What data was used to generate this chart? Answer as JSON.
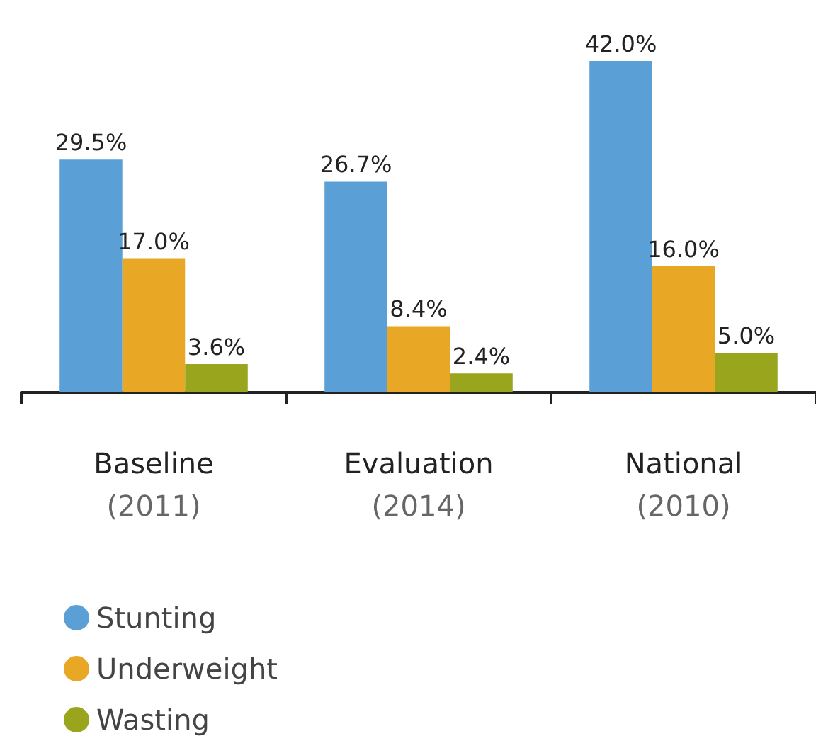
{
  "chart_data": {
    "type": "bar",
    "categories": [
      "Baseline\n(2011)",
      "Evaluation\n(2014)",
      "National\n(2010)"
    ],
    "series": [
      {
        "name": "Stunting",
        "color": "#5aa0d6",
        "values": [
          29.5,
          26.7,
          42.0
        ],
        "value_labels": [
          "29.5%",
          "26.7%",
          "42.0%"
        ]
      },
      {
        "name": "Underweight",
        "color": "#e8a825",
        "values": [
          17.0,
          8.4,
          16.0
        ],
        "value_labels": [
          "17.0%",
          "8.4%",
          "16.0%"
        ]
      },
      {
        "name": "Wasting",
        "color": "#9aa51e",
        "values": [
          3.6,
          2.4,
          5.0
        ],
        "value_labels": [
          "3.6%",
          "2.4%",
          "5.0%"
        ]
      }
    ],
    "legend": "bottom left",
    "grid": false
  }
}
